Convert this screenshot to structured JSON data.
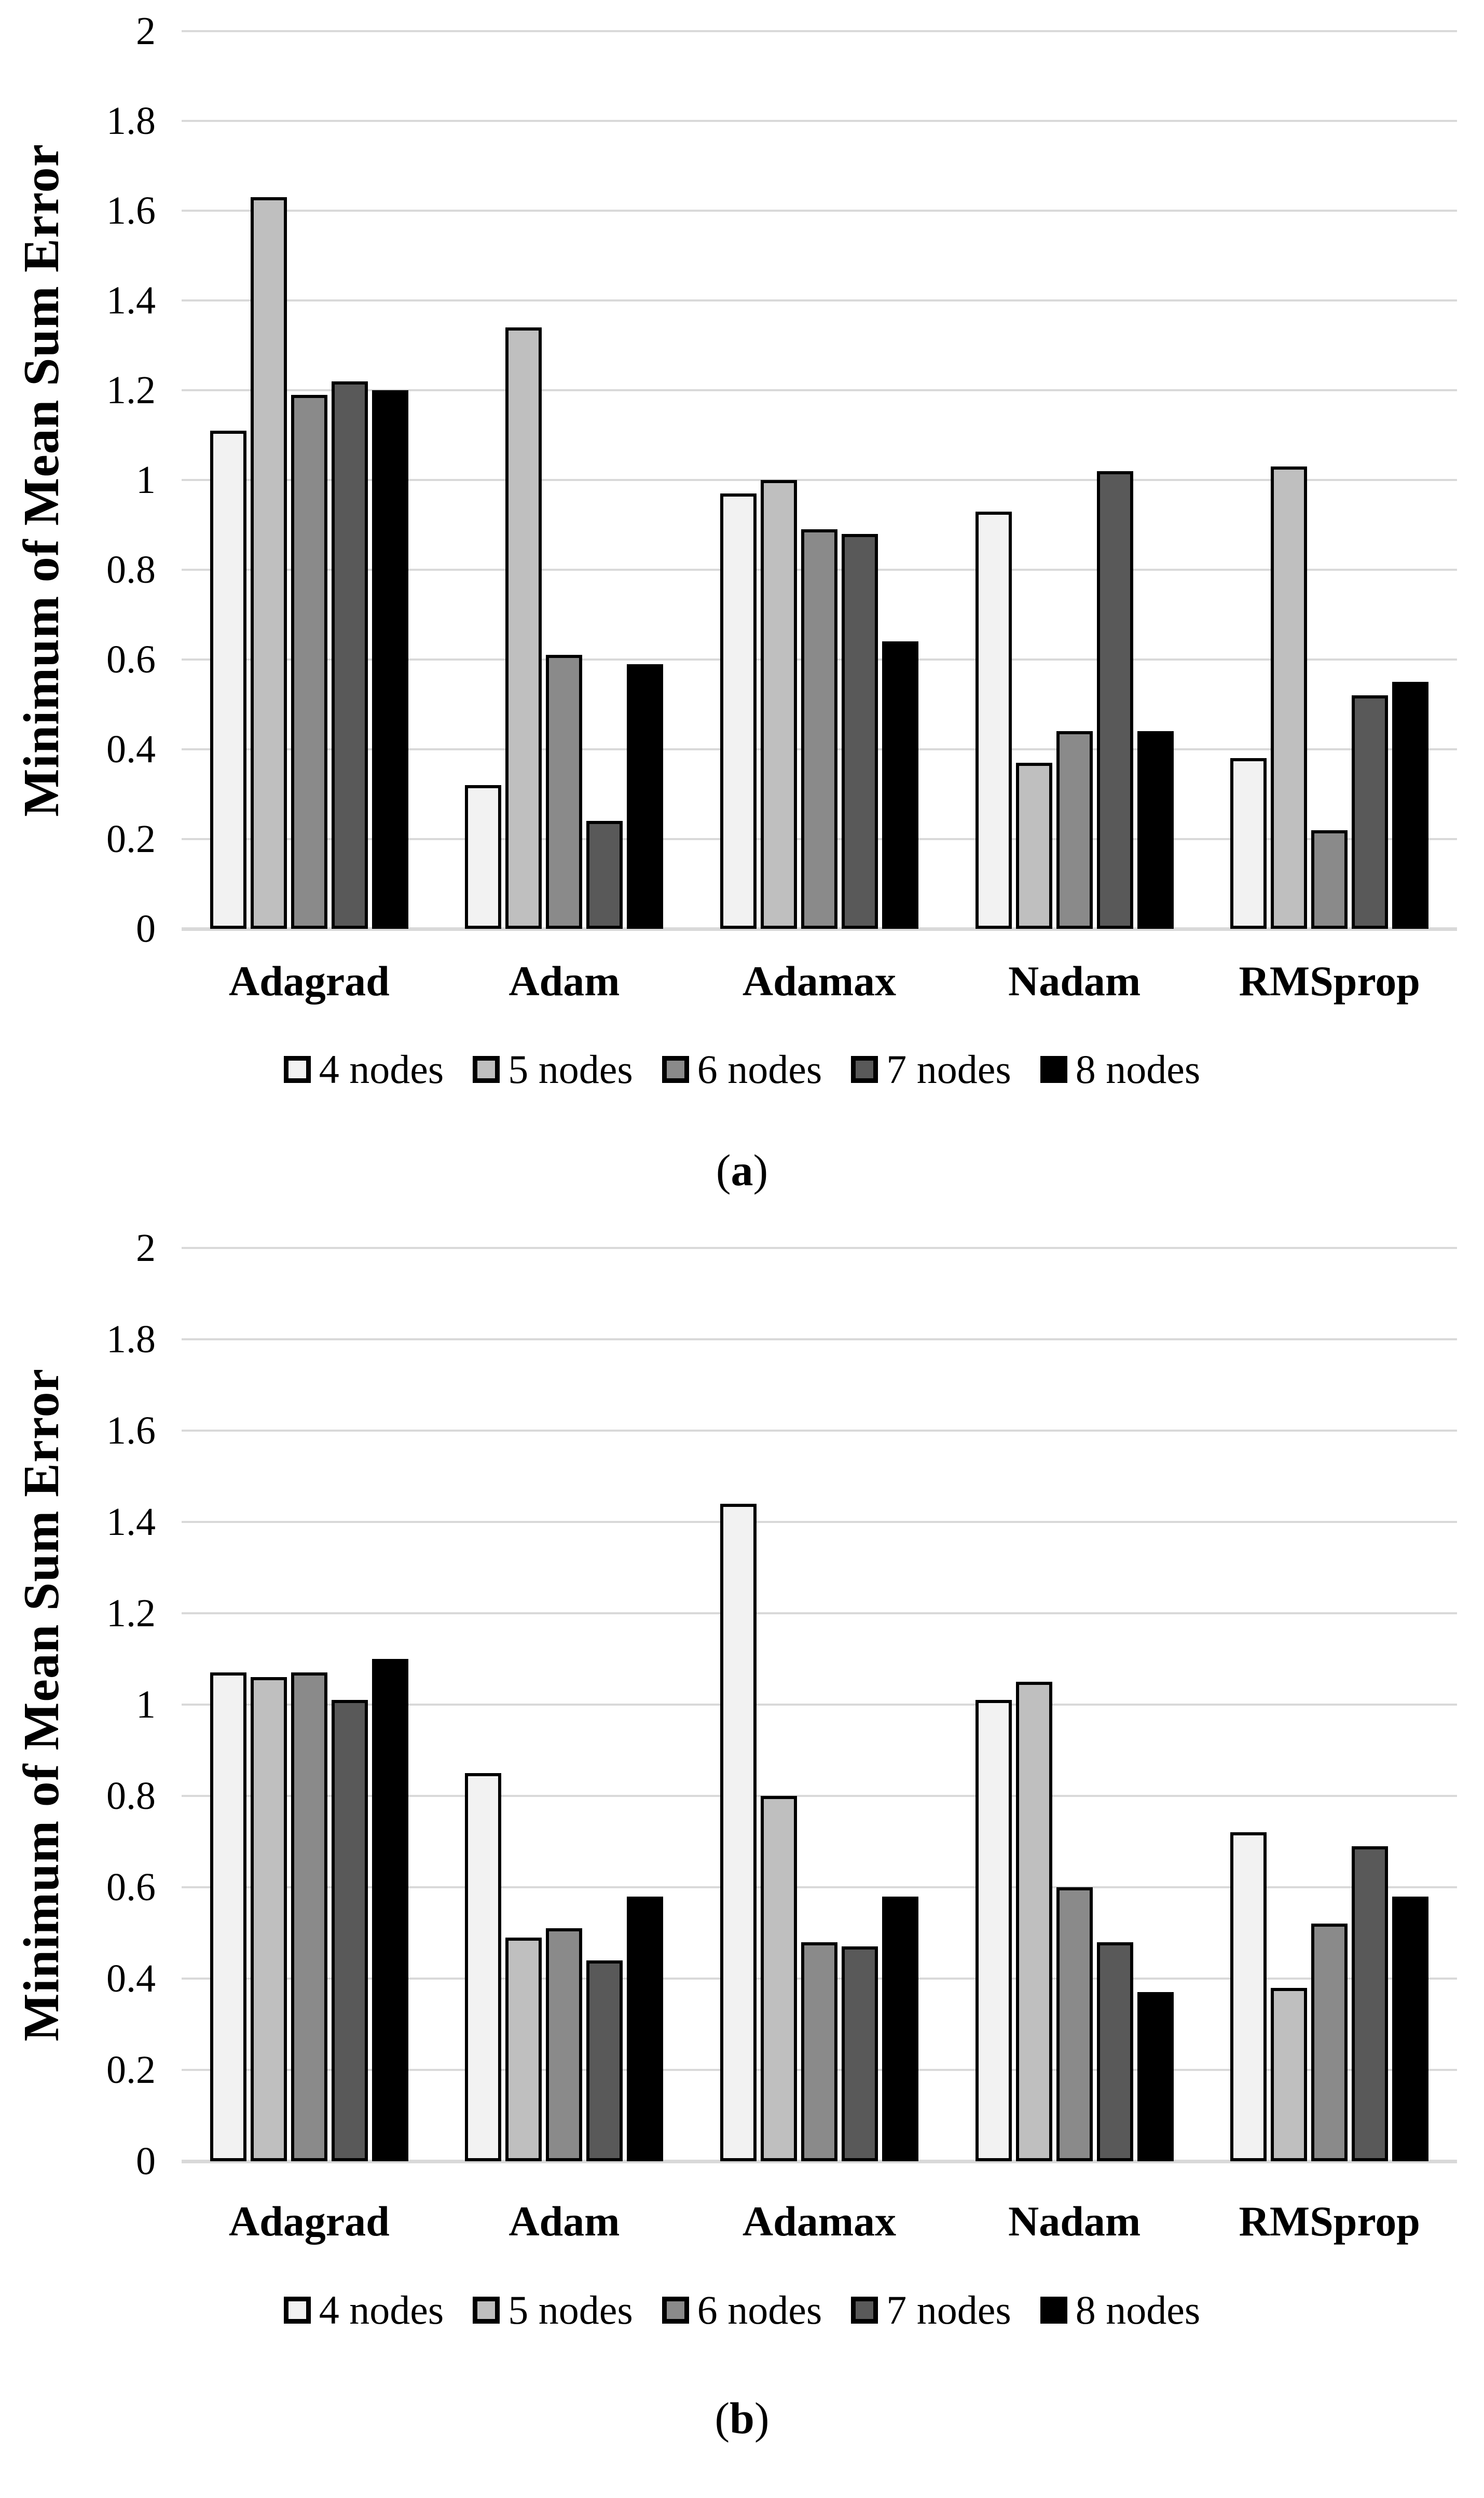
{
  "figure": {
    "background": "#ffffff",
    "captions": [
      "(a)",
      "(b)"
    ]
  },
  "colors": {
    "gridline": "#d9d9d9",
    "axis_line": "#d9d9d9",
    "bar_border": "#000000",
    "text": "#000000"
  },
  "chart_data": [
    {
      "type": "bar",
      "title": "",
      "caption": "(a)",
      "xlabel": "",
      "ylabel": "Minimum of Mean Sum Error",
      "ylim": [
        0,
        2
      ],
      "ytick_step": 0.2,
      "yticklabels": [
        "0",
        "0.2",
        "0.4",
        "0.6",
        "0.8",
        "1",
        "1.2",
        "1.4",
        "1.6",
        "1.8",
        "2"
      ],
      "grid": true,
      "legend_position": "bottom",
      "categories": [
        "Adagrad",
        "Adam",
        "Adamax",
        "Nadam",
        "RMSprop"
      ],
      "series": [
        {
          "name": "4 nodes",
          "color": "#f2f2f2",
          "values": [
            1.11,
            0.32,
            0.97,
            0.93,
            0.38
          ]
        },
        {
          "name": "5 nodes",
          "color": "#bfbfbf",
          "values": [
            1.63,
            1.34,
            1.0,
            0.37,
            1.03
          ]
        },
        {
          "name": "6 nodes",
          "color": "#8a8a8a",
          "values": [
            1.19,
            0.61,
            0.89,
            0.44,
            0.22
          ]
        },
        {
          "name": "7 nodes",
          "color": "#595959",
          "values": [
            1.22,
            0.24,
            0.88,
            1.02,
            0.52
          ]
        },
        {
          "name": "8 nodes",
          "color": "#000000",
          "values": [
            1.2,
            0.59,
            0.64,
            0.44,
            0.55
          ]
        }
      ]
    },
    {
      "type": "bar",
      "title": "",
      "caption": "(b)",
      "xlabel": "",
      "ylabel": "Minimum of Mean Sum Error",
      "ylim": [
        0,
        2
      ],
      "ytick_step": 0.2,
      "yticklabels": [
        "0",
        "0.2",
        "0.4",
        "0.6",
        "0.8",
        "1",
        "1.2",
        "1.4",
        "1.6",
        "1.8",
        "2"
      ],
      "grid": true,
      "legend_position": "bottom",
      "categories": [
        "Adagrad",
        "Adam",
        "Adamax",
        "Nadam",
        "RMSprop"
      ],
      "series": [
        {
          "name": "4 nodes",
          "color": "#f2f2f2",
          "values": [
            1.07,
            0.85,
            1.44,
            1.01,
            0.72
          ]
        },
        {
          "name": "5 nodes",
          "color": "#bfbfbf",
          "values": [
            1.06,
            0.49,
            0.8,
            1.05,
            0.38
          ]
        },
        {
          "name": "6 nodes",
          "color": "#8a8a8a",
          "values": [
            1.07,
            0.51,
            0.48,
            0.6,
            0.52
          ]
        },
        {
          "name": "7 nodes",
          "color": "#595959",
          "values": [
            1.01,
            0.44,
            0.47,
            0.48,
            0.69
          ]
        },
        {
          "name": "8 nodes",
          "color": "#000000",
          "values": [
            1.1,
            0.58,
            0.58,
            0.37,
            0.58
          ]
        }
      ]
    }
  ]
}
